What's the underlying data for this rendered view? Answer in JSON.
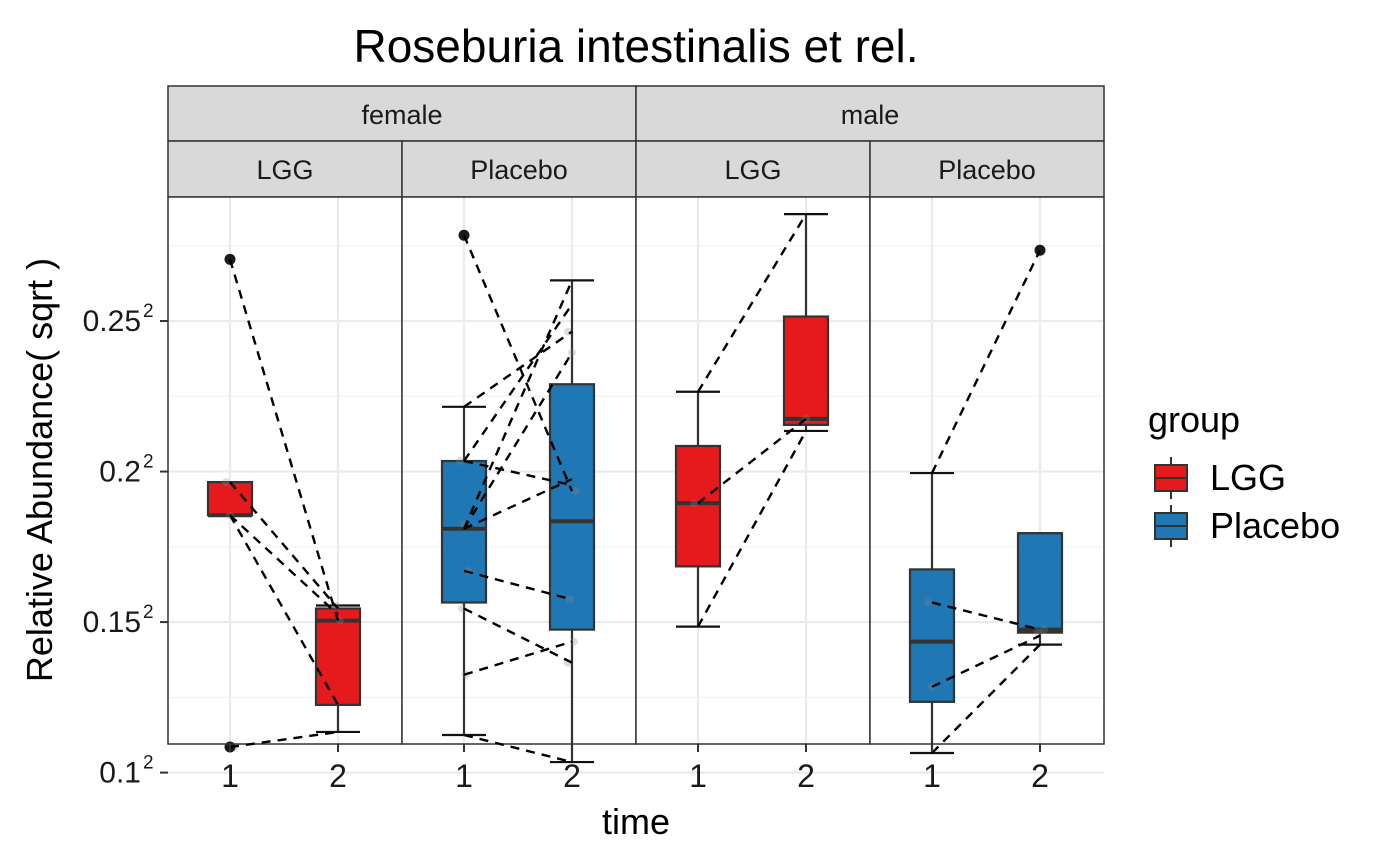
{
  "chart_data": {
    "type": "boxplot",
    "title": "Roseburia intestinalis et rel.",
    "xlabel": "time",
    "ylabel": "Relative Abundance( sqrt )",
    "y_scale": "sqrt",
    "y_sqrt_range": [
      0.1095,
      0.2912
    ],
    "y_ticks": [
      {
        "value": 0.1,
        "base": "0.1",
        "exp": "2"
      },
      {
        "value": 0.15,
        "base": "0.15",
        "exp": "2"
      },
      {
        "value": 0.2,
        "base": "0.2",
        "exp": "2"
      },
      {
        "value": 0.25,
        "base": "0.25",
        "exp": "2"
      }
    ],
    "x_categories": [
      "1",
      "2"
    ],
    "facet_rows": [
      "female",
      "male"
    ],
    "facet_cols": [
      "LGG",
      "Placebo"
    ],
    "legend": {
      "title": "group",
      "position": "right",
      "items": [
        {
          "label": "LGG",
          "color": "#E41A1C"
        },
        {
          "label": "Placebo",
          "color": "#1F78B4"
        }
      ]
    },
    "grid": true,
    "panels": [
      {
        "sex": "female",
        "group": "LGG",
        "color": "#E41A1C",
        "boxes": [
          {
            "time": "1",
            "lower_whisker": 0.1855,
            "q1": 0.1855,
            "median": 0.1855,
            "q3": 0.1965,
            "upper_whisker": 0.1965
          },
          {
            "time": "2",
            "lower_whisker": 0.1135,
            "q1": 0.1225,
            "median": 0.1505,
            "q3": 0.1545,
            "upper_whisker": 0.1555
          }
        ],
        "outliers": [
          {
            "time": "1",
            "value": 0.2705
          },
          {
            "time": "1",
            "value": 0.1085
          }
        ],
        "points": [
          {
            "time": "1",
            "value": 0.1965
          },
          {
            "time": "1",
            "value": 0.1855
          },
          {
            "time": "1",
            "value": 0.1085
          },
          {
            "time": "2",
            "value": 0.1555
          },
          {
            "time": "2",
            "value": 0.1505
          }
        ],
        "pairs": [
          [
            0.2705,
            0.1505
          ],
          [
            0.1965,
            0.1545
          ],
          [
            0.1855,
            0.1525
          ],
          [
            0.1855,
            0.1225
          ],
          [
            0.1085,
            0.1135
          ]
        ]
      },
      {
        "sex": "female",
        "group": "Placebo",
        "color": "#1F78B4",
        "boxes": [
          {
            "time": "1",
            "lower_whisker": 0.1125,
            "q1": 0.1565,
            "median": 0.181,
            "q3": 0.2035,
            "upper_whisker": 0.2215
          },
          {
            "time": "2",
            "lower_whisker": 0.1035,
            "q1": 0.1475,
            "median": 0.1835,
            "q3": 0.229,
            "upper_whisker": 0.2635
          }
        ],
        "outliers": [
          {
            "time": "1",
            "value": 0.2785
          }
        ],
        "points": [
          {
            "time": "1",
            "value": 0.2035
          },
          {
            "time": "1",
            "value": 0.1825
          },
          {
            "time": "1",
            "value": 0.167
          },
          {
            "time": "1",
            "value": 0.1545
          },
          {
            "time": "1",
            "value": 0.1325
          },
          {
            "time": "2",
            "value": 0.2465
          },
          {
            "time": "2",
            "value": 0.2395
          },
          {
            "time": "2",
            "value": 0.1935
          },
          {
            "time": "2",
            "value": 0.1575
          },
          {
            "time": "2",
            "value": 0.1435
          },
          {
            "time": "2",
            "value": 0.1365
          }
        ],
        "pairs": [
          [
            0.2785,
            0.1935
          ],
          [
            0.2215,
            0.2465
          ],
          [
            0.2035,
            0.2555
          ],
          [
            0.2035,
            0.1955
          ],
          [
            0.181,
            0.2635
          ],
          [
            0.181,
            0.2395
          ],
          [
            0.181,
            0.1975
          ],
          [
            0.167,
            0.1575
          ],
          [
            0.1545,
            0.1365
          ],
          [
            0.1325,
            0.1435
          ],
          [
            0.1125,
            0.1035
          ]
        ]
      },
      {
        "sex": "male",
        "group": "LGG",
        "color": "#E41A1C",
        "boxes": [
          {
            "time": "1",
            "lower_whisker": 0.1485,
            "q1": 0.1685,
            "median": 0.1895,
            "q3": 0.2085,
            "upper_whisker": 0.2265
          },
          {
            "time": "2",
            "lower_whisker": 0.2135,
            "q1": 0.2155,
            "median": 0.2175,
            "q3": 0.2515,
            "upper_whisker": 0.2855
          }
        ],
        "outliers": [],
        "points": [
          {
            "time": "1",
            "value": 0.1895
          },
          {
            "time": "2",
            "value": 0.2175
          }
        ],
        "pairs": [
          [
            0.2265,
            0.2855
          ],
          [
            0.1895,
            0.2175
          ],
          [
            0.1485,
            0.2135
          ]
        ]
      },
      {
        "sex": "male",
        "group": "Placebo",
        "color": "#1F78B4",
        "boxes": [
          {
            "time": "1",
            "lower_whisker": 0.1065,
            "q1": 0.1235,
            "median": 0.1435,
            "q3": 0.1675,
            "upper_whisker": 0.1995
          },
          {
            "time": "2",
            "lower_whisker": 0.1425,
            "q1": 0.1465,
            "median": 0.1475,
            "q3": 0.1795,
            "upper_whisker": 0.1795
          }
        ],
        "outliers": [
          {
            "time": "2",
            "value": 0.2735
          }
        ],
        "points": [
          {
            "time": "1",
            "value": 0.1565
          },
          {
            "time": "1",
            "value": 0.1285
          },
          {
            "time": "2",
            "value": 0.1475
          },
          {
            "time": "2",
            "value": 0.1465
          }
        ],
        "pairs": [
          [
            0.1995,
            0.2735
          ],
          [
            0.1565,
            0.1475
          ],
          [
            0.1285,
            0.1455
          ],
          [
            0.1065,
            0.1425
          ]
        ]
      }
    ]
  }
}
